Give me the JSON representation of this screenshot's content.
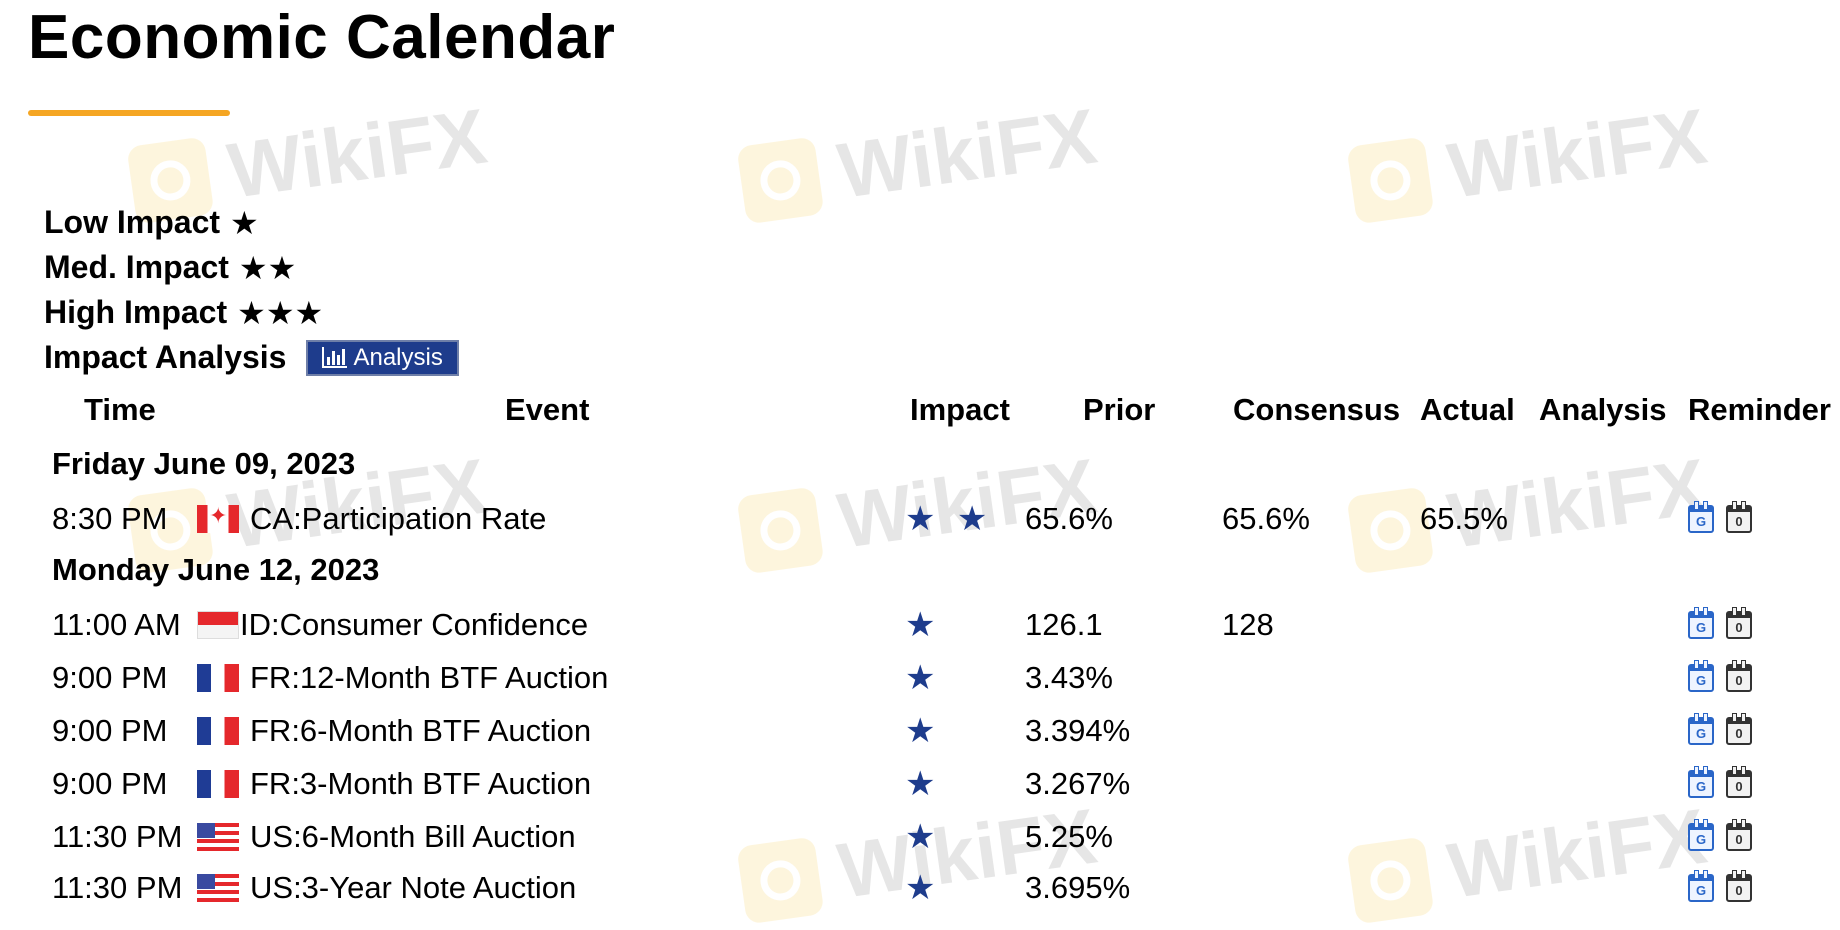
{
  "page": {
    "title": "Economic Calendar",
    "watermark": "WikiFX",
    "accent_color": "#f5a623",
    "impact_star_color": "#1e3c8c"
  },
  "legend": {
    "low": "Low Impact",
    "med": "Med. Impact",
    "high": "High Impact",
    "analysis_label": "Impact Analysis",
    "analysis_button": "Analysis",
    "star_glyph": "★"
  },
  "headers": {
    "time": "Time",
    "event": "Event",
    "impact": "Impact",
    "prior": "Prior",
    "consensus": "Consensus",
    "actual": "Actual",
    "analysis": "Analysis",
    "reminder": "Reminder"
  },
  "days": [
    {
      "date": "Friday June 09, 2023",
      "events": [
        {
          "time": "8:30 PM",
          "flag": "ca",
          "event": "CA:Participation Rate",
          "impact": "★ ★",
          "prior": "65.6%",
          "consensus": "65.6%",
          "actual": "65.5%"
        }
      ]
    },
    {
      "date": "Monday June 12, 2023",
      "events": [
        {
          "time": "11:00 AM",
          "flag": "id",
          "event": "ID:Consumer Confidence",
          "impact": "★",
          "prior": "126.1",
          "consensus": "128",
          "actual": ""
        },
        {
          "time": "9:00 PM",
          "flag": "fr",
          "event": "FR:12-Month BTF Auction",
          "impact": "★",
          "prior": "3.43%",
          "consensus": "",
          "actual": ""
        },
        {
          "time": "9:00 PM",
          "flag": "fr",
          "event": "FR:6-Month BTF Auction",
          "impact": "★",
          "prior": "3.394%",
          "consensus": "",
          "actual": ""
        },
        {
          "time": "9:00 PM",
          "flag": "fr",
          "event": "FR:3-Month BTF Auction",
          "impact": "★",
          "prior": "3.267%",
          "consensus": "",
          "actual": ""
        },
        {
          "time": "11:30 PM",
          "flag": "us",
          "event": "US:6-Month Bill Auction",
          "impact": "★",
          "prior": "5.25%",
          "consensus": "",
          "actual": ""
        },
        {
          "time": "11:30 PM",
          "flag": "us",
          "event": "US:3-Year Note Auction",
          "impact": "★",
          "prior": "3.695%",
          "consensus": "",
          "actual": ""
        }
      ]
    }
  ],
  "reminder_icons": [
    "google-calendar-icon",
    "outlook-calendar-icon"
  ]
}
